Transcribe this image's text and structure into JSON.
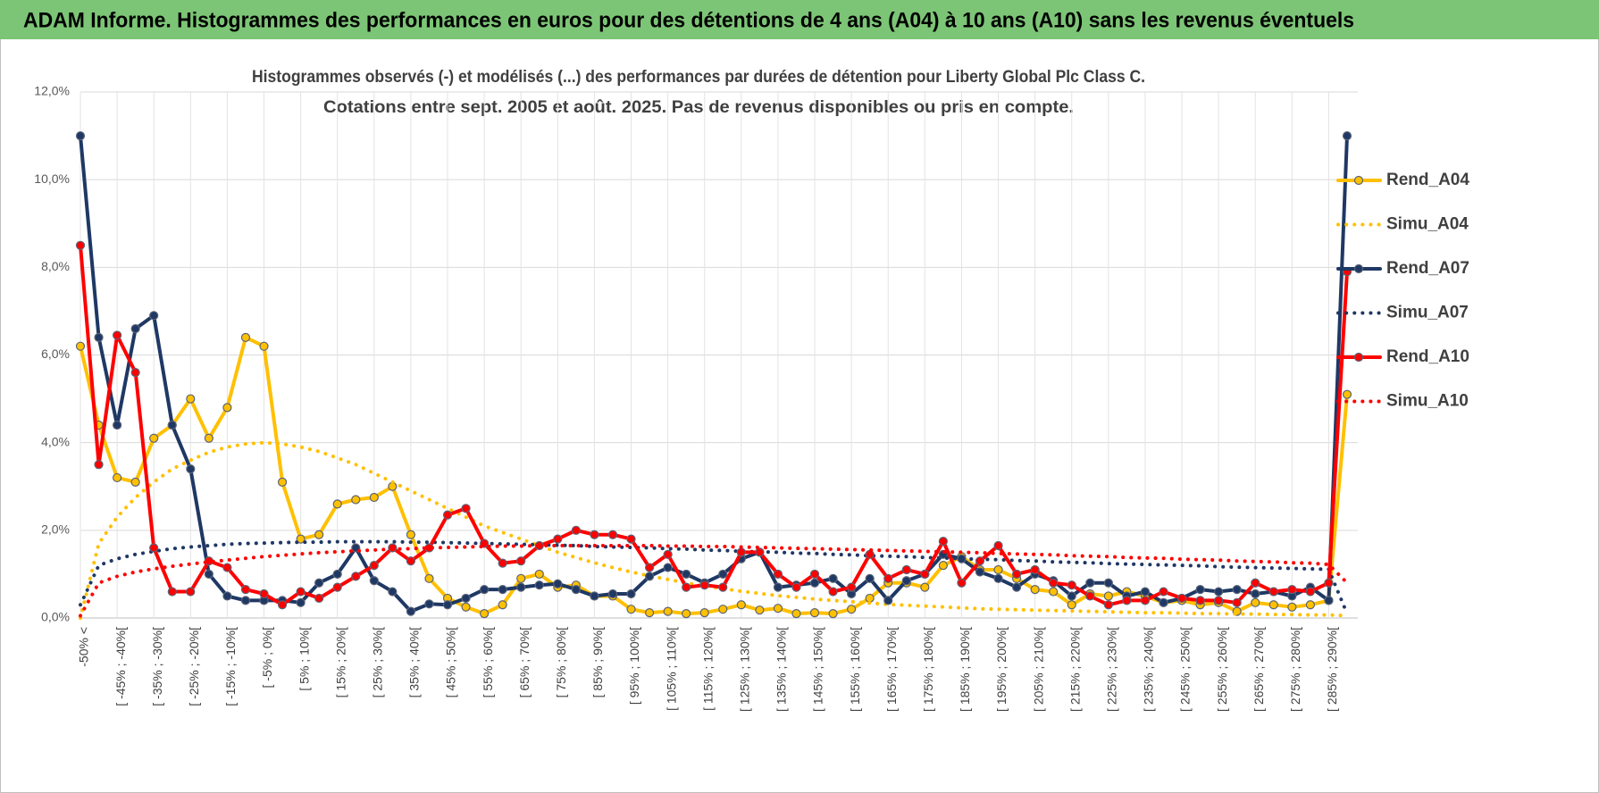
{
  "header": {
    "title": "ADAM Informe. Histogrammes des performances en euros pour des détentions de 4 ans (A04) à 10 ans (A10) sans les revenus éventuels"
  },
  "chart_data": {
    "type": "line",
    "title": "Histogrammes observés (-) et modélisés (...) des performances par durées de détention pour Liberty Global Plc Class C.",
    "subtitle": "Cotations entre sept. 2005 et août. 2025. Pas de revenus disponibles ou pris en compte.",
    "categories": [
      "-50% <",
      null,
      "[ -45% ; -40%[",
      null,
      "[ -35% ; -30%[",
      null,
      "[ -25% ; -20%[",
      null,
      "[ -15% ; -10%[",
      null,
      "[ -5% ; 0%[",
      null,
      "[ 5% ; 10%[",
      null,
      "[ 15% ; 20%[",
      null,
      "[ 25% ; 30%[",
      null,
      "[ 35% ; 40%[",
      null,
      "[ 45% ; 50%[",
      null,
      "[ 55% ; 60%[",
      null,
      "[ 65% ; 70%[",
      null,
      "[ 75% ; 80%[",
      null,
      "[ 85% ; 90%[",
      null,
      "[ 95% ; 100%[",
      null,
      "[ 105% ; 110%[",
      null,
      "[ 115% ; 120%[",
      null,
      "[ 125% ; 130%[",
      null,
      "[ 135% ; 140%[",
      null,
      "[ 145% ; 150%[",
      null,
      "[ 155% ; 160%[",
      null,
      "[ 165% ; 170%[",
      null,
      "[ 175% ; 180%[",
      null,
      "[ 185% ; 190%[",
      null,
      "[ 195% ; 200%[",
      null,
      "[ 205% ; 210%[",
      null,
      "[ 215% ; 220%[",
      null,
      "[ 225% ; 230%[",
      null,
      "[ 235% ; 240%[",
      null,
      "[ 245% ; 250%[",
      null,
      "[ 255% ; 260%[",
      null,
      "[ 265% ; 270%[",
      null,
      "[ 275% ; 280%[",
      null,
      "[ 285% ; 290%[",
      null
    ],
    "ylim": [
      0,
      12
    ],
    "yticks": [
      {
        "value": 0,
        "label": "0,0%"
      },
      {
        "value": 2,
        "label": "2,0%"
      },
      {
        "value": 4,
        "label": "4,0%"
      },
      {
        "value": 6,
        "label": "6,0%"
      },
      {
        "value": 8,
        "label": "8,0%"
      },
      {
        "value": 10,
        "label": "10,0%"
      },
      {
        "value": 12,
        "label": "12,0%"
      }
    ],
    "grid": true,
    "legend": "right",
    "series": [
      {
        "name": "Rend_A04",
        "color": "#ffc000",
        "line_style": "solid",
        "markers": true,
        "values": [
          6.2,
          4.4,
          3.2,
          3.1,
          4.1,
          4.4,
          5.0,
          4.1,
          4.8,
          6.4,
          6.2,
          3.1,
          1.8,
          1.9,
          2.6,
          2.7,
          2.75,
          3.0,
          1.9,
          0.9,
          0.45,
          0.25,
          0.1,
          0.3,
          0.9,
          1.0,
          0.7,
          0.75,
          0.5,
          0.5,
          0.2,
          0.12,
          0.15,
          0.1,
          0.12,
          0.2,
          0.3,
          0.18,
          0.22,
          0.1,
          0.12,
          0.1,
          0.2,
          0.45,
          0.8,
          0.8,
          0.7,
          1.2,
          1.4,
          1.1,
          1.1,
          0.9,
          0.65,
          0.6,
          0.3,
          0.55,
          0.5,
          0.6,
          0.5,
          0.35,
          0.4,
          0.3,
          0.35,
          0.15,
          0.35,
          0.3,
          0.25,
          0.3,
          0.4,
          5.1
        ]
      },
      {
        "name": "Simu_A04",
        "color": "#ffc000",
        "line_style": "dotted",
        "markers": false,
        "values": [
          0,
          1.7,
          2.3,
          2.75,
          3.1,
          3.4,
          3.6,
          3.78,
          3.9,
          3.97,
          4.0,
          3.97,
          3.9,
          3.8,
          3.65,
          3.5,
          3.3,
          3.1,
          2.9,
          2.7,
          2.5,
          2.3,
          2.1,
          1.95,
          1.8,
          1.65,
          1.5,
          1.38,
          1.26,
          1.15,
          1.05,
          0.96,
          0.88,
          0.8,
          0.73,
          0.67,
          0.61,
          0.56,
          0.51,
          0.47,
          0.43,
          0.4,
          0.37,
          0.34,
          0.31,
          0.29,
          0.27,
          0.25,
          0.23,
          0.21,
          0.2,
          0.19,
          0.18,
          0.17,
          0.16,
          0.15,
          0.14,
          0.13,
          0.12,
          0.12,
          0.11,
          0.1,
          0.1,
          0.09,
          0.09,
          0.08,
          0.08,
          0.07,
          0.07,
          0.05
        ]
      },
      {
        "name": "Rend_A07",
        "color": "#1f3864",
        "line_style": "solid",
        "markers": true,
        "values": [
          11.0,
          6.4,
          4.4,
          6.6,
          6.9,
          4.4,
          3.4,
          1.0,
          0.5,
          0.4,
          0.4,
          0.4,
          0.35,
          0.8,
          1.0,
          1.6,
          0.85,
          0.6,
          0.15,
          0.32,
          0.3,
          0.45,
          0.65,
          0.65,
          0.7,
          0.75,
          0.78,
          0.65,
          0.5,
          0.55,
          0.55,
          0.95,
          1.15,
          1.0,
          0.8,
          1.0,
          1.35,
          1.5,
          0.7,
          0.75,
          0.8,
          0.9,
          0.55,
          0.9,
          0.4,
          0.85,
          1.0,
          1.45,
          1.35,
          1.05,
          0.9,
          0.7,
          1.0,
          0.85,
          0.5,
          0.8,
          0.8,
          0.5,
          0.6,
          0.35,
          0.45,
          0.65,
          0.6,
          0.65,
          0.55,
          0.6,
          0.5,
          0.7,
          0.4,
          11.0
        ]
      },
      {
        "name": "Simu_A07",
        "color": "#1f3864",
        "line_style": "dotted",
        "markers": false,
        "values": [
          0.3,
          1.2,
          1.35,
          1.45,
          1.52,
          1.58,
          1.62,
          1.65,
          1.68,
          1.7,
          1.71,
          1.72,
          1.73,
          1.73,
          1.74,
          1.74,
          1.74,
          1.74,
          1.73,
          1.73,
          1.72,
          1.71,
          1.7,
          1.69,
          1.68,
          1.67,
          1.66,
          1.65,
          1.63,
          1.62,
          1.61,
          1.6,
          1.58,
          1.57,
          1.55,
          1.54,
          1.52,
          1.51,
          1.5,
          1.48,
          1.47,
          1.45,
          1.44,
          1.42,
          1.41,
          1.4,
          1.38,
          1.37,
          1.35,
          1.34,
          1.33,
          1.31,
          1.3,
          1.28,
          1.27,
          1.26,
          1.24,
          1.23,
          1.22,
          1.21,
          1.2,
          1.19,
          1.17,
          1.16,
          1.15,
          1.14,
          1.13,
          1.12,
          1.11,
          0.1
        ]
      },
      {
        "name": "Rend_A10",
        "color": "#ff0000",
        "line_style": "solid",
        "markers": true,
        "values": [
          8.5,
          3.5,
          6.45,
          5.6,
          1.6,
          0.6,
          0.6,
          1.3,
          1.15,
          0.65,
          0.55,
          0.3,
          0.6,
          0.45,
          0.7,
          0.95,
          1.2,
          1.6,
          1.3,
          1.6,
          2.35,
          2.5,
          1.7,
          1.25,
          1.3,
          1.65,
          1.8,
          2.0,
          1.9,
          1.9,
          1.8,
          1.15,
          1.45,
          0.7,
          0.75,
          0.7,
          1.5,
          1.5,
          1.0,
          0.7,
          1.0,
          0.6,
          0.7,
          1.45,
          0.9,
          1.1,
          1.0,
          1.75,
          0.8,
          1.3,
          1.65,
          1.0,
          1.1,
          0.8,
          0.75,
          0.5,
          0.3,
          0.4,
          0.4,
          0.6,
          0.45,
          0.4,
          0.4,
          0.35,
          0.8,
          0.6,
          0.65,
          0.6,
          0.8,
          7.9
        ]
      },
      {
        "name": "Simu_A10",
        "color": "#ff0000",
        "line_style": "dotted",
        "markers": false,
        "values": [
          0.05,
          0.8,
          0.95,
          1.05,
          1.12,
          1.18,
          1.23,
          1.28,
          1.32,
          1.36,
          1.4,
          1.43,
          1.46,
          1.49,
          1.51,
          1.53,
          1.55,
          1.57,
          1.58,
          1.6,
          1.61,
          1.62,
          1.63,
          1.64,
          1.64,
          1.65,
          1.65,
          1.65,
          1.65,
          1.65,
          1.65,
          1.65,
          1.64,
          1.64,
          1.63,
          1.63,
          1.62,
          1.61,
          1.6,
          1.59,
          1.58,
          1.57,
          1.56,
          1.55,
          1.54,
          1.53,
          1.52,
          1.51,
          1.5,
          1.49,
          1.47,
          1.46,
          1.45,
          1.44,
          1.42,
          1.41,
          1.4,
          1.38,
          1.37,
          1.36,
          1.34,
          1.33,
          1.32,
          1.3,
          1.29,
          1.28,
          1.26,
          1.25,
          1.22,
          0.8
        ]
      }
    ]
  }
}
